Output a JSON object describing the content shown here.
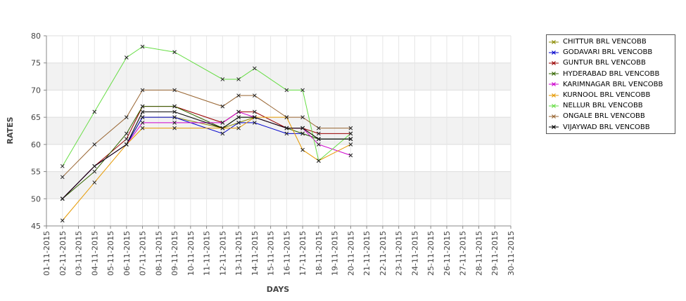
{
  "chart_data": {
    "type": "line",
    "xlabel": "DAYS",
    "ylabel": "RATES",
    "ylim": [
      45,
      80
    ],
    "yticks": [
      45,
      50,
      55,
      60,
      65,
      70,
      75,
      80
    ],
    "x_tick_labels": [
      "01-11-2015",
      "02-11-2015",
      "03-11-2015",
      "04-11-2015",
      "05-11-2015",
      "06-11-2015",
      "07-11-2015",
      "08-11-2015",
      "09-11-2015",
      "10-11-2015",
      "11-11-2015",
      "12-11-2015",
      "13-11-2015",
      "14-11-2015",
      "15-11-2015",
      "16-11-2015",
      "17-11-2015",
      "18-11-2015",
      "19-11-2015",
      "20-11-2015",
      "21-11-2015",
      "22-11-2015",
      "23-11-2015",
      "24-11-2015",
      "25-11-2015",
      "26-11-2015",
      "27-11-2015",
      "28-11-2015",
      "29-11-2015",
      "30-11-2015"
    ],
    "grid": true,
    "legend_position": "right",
    "series": [
      {
        "name": "CHITTUR BRL VENCOBB",
        "color": "#8a8a00",
        "x": [
          "02-11-2015",
          "04-11-2015",
          "06-11-2015",
          "07-11-2015",
          "09-11-2015",
          "12-11-2015",
          "13-11-2015",
          "14-11-2015",
          "16-11-2015",
          "17-11-2015",
          "18-11-2015",
          "20-11-2015"
        ],
        "y": [
          50,
          56,
          60,
          65,
          65,
          63,
          64,
          65,
          63,
          63,
          61,
          61
        ]
      },
      {
        "name": "GODAVARI BRL VENCOBB",
        "color": "#0000cc",
        "x": [
          "02-11-2015",
          "04-11-2015",
          "06-11-2015",
          "07-11-2015",
          "09-11-2015",
          "12-11-2015",
          "13-11-2015",
          "14-11-2015",
          "16-11-2015",
          "17-11-2015",
          "18-11-2015",
          "20-11-2015"
        ],
        "y": [
          50,
          56,
          60,
          65,
          65,
          62,
          64,
          64,
          62,
          62,
          61,
          61
        ]
      },
      {
        "name": "GUNTUR BRL VENCOBB",
        "color": "#990000",
        "x": [
          "02-11-2015",
          "04-11-2015",
          "06-11-2015",
          "07-11-2015",
          "09-11-2015",
          "12-11-2015",
          "13-11-2015",
          "14-11-2015",
          "16-11-2015",
          "17-11-2015",
          "18-11-2015",
          "20-11-2015"
        ],
        "y": [
          50,
          56,
          61,
          67,
          67,
          64,
          66,
          66,
          63,
          63,
          62,
          62
        ]
      },
      {
        "name": "HYDERABAD BRL VENCOBB",
        "color": "#336600",
        "x": [
          "02-11-2015",
          "04-11-2015",
          "06-11-2015",
          "07-11-2015",
          "09-11-2015",
          "12-11-2015",
          "13-11-2015",
          "14-11-2015",
          "16-11-2015",
          "17-11-2015",
          "18-11-2015",
          "20-11-2015"
        ],
        "y": [
          50,
          55,
          62,
          67,
          67,
          63,
          65,
          65,
          63,
          62,
          61,
          61
        ]
      },
      {
        "name": "KARIMNAGAR BRL VENCOBB",
        "color": "#cc00cc",
        "x": [
          "02-11-2015",
          "04-11-2015",
          "06-11-2015",
          "07-11-2015",
          "09-11-2015",
          "12-11-2015",
          "13-11-2015",
          "14-11-2015",
          "16-11-2015",
          "17-11-2015",
          "18-11-2015",
          "20-11-2015"
        ],
        "y": [
          50,
          56,
          60,
          64,
          64,
          64,
          66,
          65,
          63,
          63,
          60,
          58
        ]
      },
      {
        "name": "KURNOOL BRL VENCOBB",
        "color": "#e69900",
        "x": [
          "02-11-2015",
          "04-11-2015",
          "06-11-2015",
          "07-11-2015",
          "09-11-2015",
          "12-11-2015",
          "13-11-2015",
          "14-11-2015",
          "16-11-2015",
          "17-11-2015",
          "18-11-2015",
          "20-11-2015"
        ],
        "y": [
          46,
          53,
          60,
          63,
          63,
          63,
          63,
          65,
          65,
          59,
          57,
          60
        ]
      },
      {
        "name": "NELLUR BRL VENCOBB",
        "color": "#66dd44",
        "x": [
          "02-11-2015",
          "04-11-2015",
          "06-11-2015",
          "07-11-2015",
          "09-11-2015",
          "12-11-2015",
          "13-11-2015",
          "14-11-2015",
          "16-11-2015",
          "17-11-2015",
          "18-11-2015",
          "20-11-2015"
        ],
        "y": [
          56,
          66,
          76,
          78,
          77,
          72,
          72,
          74,
          70,
          70,
          57,
          62
        ]
      },
      {
        "name": "ONGALE BRL VENCOBB",
        "color": "#996633",
        "x": [
          "02-11-2015",
          "04-11-2015",
          "06-11-2015",
          "07-11-2015",
          "09-11-2015",
          "12-11-2015",
          "13-11-2015",
          "14-11-2015",
          "16-11-2015",
          "17-11-2015",
          "18-11-2015",
          "20-11-2015"
        ],
        "y": [
          54,
          60,
          65,
          70,
          70,
          67,
          69,
          69,
          65,
          65,
          63,
          63
        ]
      },
      {
        "name": "VIJAYWAD BRL VENCOBB",
        "color": "#000000",
        "x": [
          "02-11-2015",
          "04-11-2015",
          "06-11-2015",
          "07-11-2015",
          "09-11-2015",
          "12-11-2015",
          "13-11-2015",
          "14-11-2015",
          "16-11-2015",
          "17-11-2015",
          "18-11-2015",
          "20-11-2015"
        ],
        "y": [
          50,
          56,
          60,
          66,
          66,
          63,
          65,
          65,
          63,
          63,
          61,
          61
        ]
      }
    ]
  }
}
